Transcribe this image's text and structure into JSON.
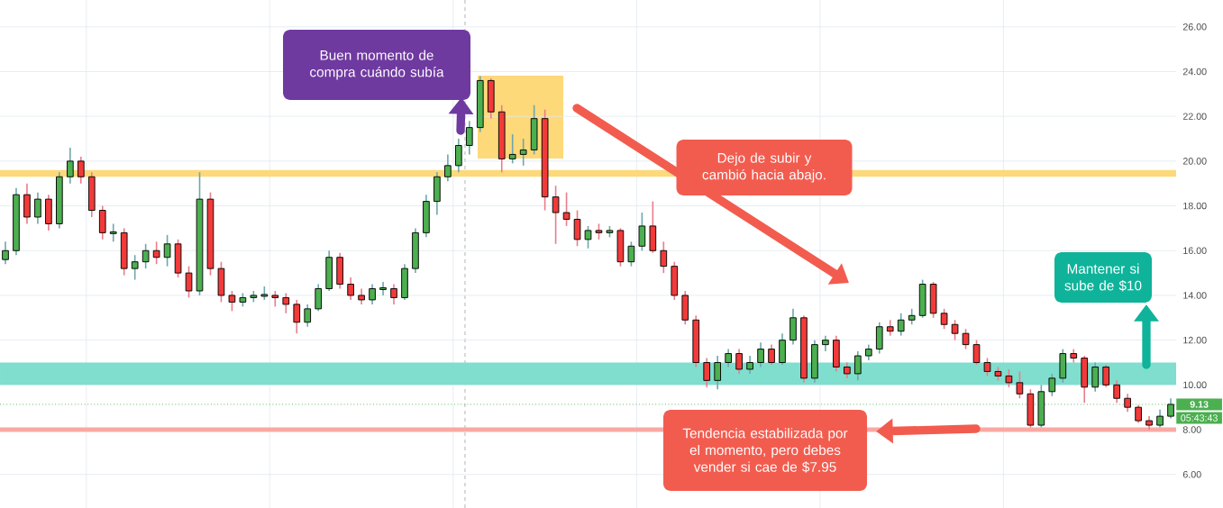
{
  "chart_data": {
    "type": "candlestick",
    "categories": [
      null,
      null,
      null,
      null,
      null,
      null,
      null,
      null,
      null,
      null,
      null,
      null,
      null,
      null,
      null,
      null,
      null,
      null,
      null,
      null,
      null,
      null,
      null,
      null,
      null,
      null,
      null,
      null,
      null,
      null,
      null,
      null,
      null,
      null,
      null,
      null,
      null,
      null,
      null,
      null,
      null,
      null,
      null,
      null,
      null,
      null,
      null,
      null,
      null,
      null,
      null,
      null,
      null,
      null,
      null,
      null,
      null,
      null,
      null,
      null,
      null,
      null,
      null,
      null,
      null,
      null,
      null,
      null,
      null,
      null,
      null,
      null,
      null,
      null,
      null,
      null,
      null,
      null,
      null,
      null,
      null,
      null,
      null,
      null,
      null,
      null,
      null,
      null,
      null,
      null,
      null,
      null,
      null,
      null,
      null,
      null,
      null,
      null,
      null,
      null,
      null,
      null,
      null,
      null,
      null,
      null,
      null,
      null,
      null
    ],
    "ohlc": [
      [
        15.6,
        16.4,
        15.4,
        16.0
      ],
      [
        16.0,
        18.8,
        15.8,
        18.5
      ],
      [
        18.5,
        19.0,
        17.2,
        17.5
      ],
      [
        17.5,
        18.6,
        17.2,
        18.3
      ],
      [
        18.3,
        18.5,
        16.9,
        17.2
      ],
      [
        17.2,
        19.5,
        17.0,
        19.3
      ],
      [
        19.3,
        20.6,
        19.0,
        20.0
      ],
      [
        20.0,
        20.2,
        19.0,
        19.3
      ],
      [
        19.3,
        19.5,
        17.5,
        17.8
      ],
      [
        17.8,
        18.0,
        16.5,
        16.8
      ],
      [
        16.8,
        17.2,
        16.4,
        16.8
      ],
      [
        16.8,
        17.0,
        14.9,
        15.2
      ],
      [
        15.2,
        15.8,
        14.7,
        15.5
      ],
      [
        15.5,
        16.3,
        15.2,
        16.0
      ],
      [
        16.0,
        16.4,
        15.4,
        15.7
      ],
      [
        15.7,
        16.7,
        15.3,
        16.3
      ],
      [
        16.3,
        16.5,
        14.8,
        15.0
      ],
      [
        15.0,
        15.3,
        13.9,
        14.2
      ],
      [
        14.2,
        19.5,
        14.0,
        18.3
      ],
      [
        18.3,
        18.6,
        14.9,
        15.2
      ],
      [
        15.2,
        15.5,
        13.7,
        14.0
      ],
      [
        14.0,
        14.2,
        13.3,
        13.7
      ],
      [
        13.7,
        14.1,
        13.5,
        13.9
      ],
      [
        13.9,
        14.2,
        13.7,
        14.0
      ],
      [
        14.0,
        14.4,
        13.8,
        14.0
      ],
      [
        14.0,
        14.2,
        13.5,
        13.9
      ],
      [
        13.9,
        14.1,
        13.2,
        13.6
      ],
      [
        13.6,
        13.8,
        12.3,
        12.8
      ],
      [
        12.8,
        13.6,
        12.6,
        13.4
      ],
      [
        13.4,
        14.5,
        13.3,
        14.3
      ],
      [
        14.3,
        16.0,
        14.2,
        15.7
      ],
      [
        15.7,
        15.9,
        14.3,
        14.5
      ],
      [
        14.5,
        14.8,
        13.8,
        14.0
      ],
      [
        14.0,
        14.3,
        13.6,
        13.8
      ],
      [
        13.8,
        14.5,
        13.6,
        14.3
      ],
      [
        14.3,
        14.6,
        14.0,
        14.3
      ],
      [
        14.3,
        14.5,
        13.6,
        13.9
      ],
      [
        13.9,
        15.4,
        13.8,
        15.2
      ],
      [
        15.2,
        17.0,
        15.0,
        16.8
      ],
      [
        16.8,
        18.5,
        16.6,
        18.2
      ],
      [
        18.2,
        19.5,
        17.6,
        19.3
      ],
      [
        19.3,
        20.3,
        19.1,
        19.8
      ],
      [
        19.8,
        21.0,
        19.5,
        20.7
      ],
      [
        20.7,
        21.8,
        20.3,
        21.5
      ],
      [
        21.5,
        23.8,
        21.3,
        23.6
      ],
      [
        23.6,
        23.7,
        21.9,
        22.2
      ],
      [
        22.2,
        22.5,
        19.5,
        20.1
      ],
      [
        20.1,
        21.2,
        19.9,
        20.3
      ],
      [
        20.3,
        21.0,
        19.8,
        20.5
      ],
      [
        20.5,
        22.5,
        20.3,
        21.9
      ],
      [
        21.9,
        22.3,
        17.8,
        18.4
      ],
      [
        18.4,
        18.9,
        16.3,
        17.7
      ],
      [
        17.7,
        18.6,
        17.1,
        17.4
      ],
      [
        17.4,
        17.8,
        16.2,
        16.5
      ],
      [
        16.5,
        17.1,
        16.1,
        16.9
      ],
      [
        16.9,
        17.2,
        16.5,
        16.8
      ],
      [
        16.8,
        17.1,
        16.6,
        16.9
      ],
      [
        16.9,
        17.0,
        15.3,
        15.5
      ],
      [
        15.5,
        16.4,
        15.3,
        16.2
      ],
      [
        16.2,
        17.7,
        16.0,
        17.1
      ],
      [
        17.1,
        18.2,
        15.9,
        16.0
      ],
      [
        16.0,
        16.4,
        15.0,
        15.3
      ],
      [
        15.3,
        15.5,
        13.8,
        14.0
      ],
      [
        14.0,
        14.2,
        12.7,
        12.9
      ],
      [
        12.9,
        13.1,
        10.8,
        11.0
      ],
      [
        11.0,
        11.2,
        9.9,
        10.2
      ],
      [
        10.2,
        11.3,
        9.8,
        11.0
      ],
      [
        11.0,
        11.6,
        10.8,
        11.4
      ],
      [
        11.4,
        11.6,
        10.5,
        10.7
      ],
      [
        10.7,
        11.3,
        10.5,
        11.0
      ],
      [
        11.0,
        11.9,
        10.8,
        11.6
      ],
      [
        11.6,
        11.8,
        10.9,
        11.0
      ],
      [
        11.0,
        12.3,
        10.9,
        12.0
      ],
      [
        12.0,
        13.4,
        11.8,
        13.0
      ],
      [
        13.0,
        13.1,
        10.1,
        10.3
      ],
      [
        10.3,
        12.0,
        10.1,
        11.8
      ],
      [
        11.8,
        12.2,
        11.5,
        12.0
      ],
      [
        12.0,
        12.2,
        10.6,
        10.8
      ],
      [
        10.8,
        11.0,
        10.3,
        10.5
      ],
      [
        10.5,
        11.5,
        10.2,
        11.3
      ],
      [
        11.3,
        11.8,
        11.1,
        11.6
      ],
      [
        11.6,
        12.8,
        11.4,
        12.6
      ],
      [
        12.6,
        12.9,
        12.2,
        12.4
      ],
      [
        12.4,
        13.2,
        12.2,
        12.9
      ],
      [
        12.9,
        13.4,
        12.7,
        13.1
      ],
      [
        13.1,
        14.7,
        13.0,
        14.5
      ],
      [
        14.5,
        14.6,
        13.0,
        13.2
      ],
      [
        13.2,
        13.4,
        12.5,
        12.7
      ],
      [
        12.7,
        12.9,
        12.0,
        12.3
      ],
      [
        12.3,
        12.5,
        11.6,
        11.8
      ],
      [
        11.8,
        12.0,
        10.9,
        11.0
      ],
      [
        11.0,
        11.2,
        10.4,
        10.6
      ],
      [
        10.6,
        10.8,
        10.2,
        10.4
      ],
      [
        10.4,
        10.7,
        9.9,
        10.1
      ],
      [
        10.1,
        10.6,
        9.4,
        9.6
      ],
      [
        9.6,
        9.8,
        8.1,
        8.2
      ],
      [
        8.2,
        10.0,
        8.1,
        9.7
      ],
      [
        9.7,
        10.5,
        9.5,
        10.3
      ],
      [
        10.3,
        11.6,
        10.1,
        11.4
      ],
      [
        11.4,
        11.6,
        11.0,
        11.2
      ],
      [
        11.2,
        11.3,
        9.2,
        9.9
      ],
      [
        9.9,
        11.0,
        9.7,
        10.8
      ],
      [
        10.8,
        10.9,
        9.9,
        10.0
      ],
      [
        10.0,
        10.2,
        9.2,
        9.4
      ],
      [
        9.4,
        9.6,
        8.8,
        9.0
      ],
      [
        9.0,
        9.1,
        8.3,
        8.4
      ],
      [
        8.4,
        8.6,
        8.0,
        8.2
      ],
      [
        8.2,
        8.9,
        8.1,
        8.6
      ],
      [
        8.6,
        9.4,
        8.5,
        9.13
      ]
    ],
    "ylim": [
      4.5,
      27.2
    ],
    "yticks": [
      {
        "value": 6,
        "label": "6.00"
      },
      {
        "value": 8,
        "label": "8.00"
      },
      {
        "value": 10,
        "label": "10.00"
      },
      {
        "value": 12,
        "label": "12.00"
      },
      {
        "value": 14,
        "label": "14.00"
      },
      {
        "value": 16,
        "label": "16.00"
      },
      {
        "value": 18,
        "label": "18.00"
      },
      {
        "value": 20,
        "label": "20.00"
      },
      {
        "value": 22,
        "label": "22.00"
      },
      {
        "value": 24,
        "label": "24.00"
      },
      {
        "value": 26,
        "label": "26.00"
      }
    ],
    "tick_labels": "y",
    "grid": true,
    "bands": [
      {
        "axis": "y",
        "from": 19.3,
        "to": 19.6,
        "color": "#fdd97a"
      },
      {
        "axis": "y",
        "from": 10.0,
        "to": 11.0,
        "color": "#80dece"
      },
      {
        "axis": "y",
        "from": 7.9,
        "to": 8.1,
        "color": "#f9a9a3"
      }
    ],
    "ref_lines": [
      {
        "axis": "y",
        "value": 9.13,
        "label": "9.13",
        "color": "#4caf50",
        "line_style": "dotted"
      }
    ],
    "annotations": [
      "Buen momento de compra cuándo subía",
      "Dejo de subir y cambió hacia abajo.",
      "Mantener si sube de $10",
      "Tendencia estabilizada por el momento, pero debes vender si cae de $7.95",
      "05:43:43"
    ]
  }
}
